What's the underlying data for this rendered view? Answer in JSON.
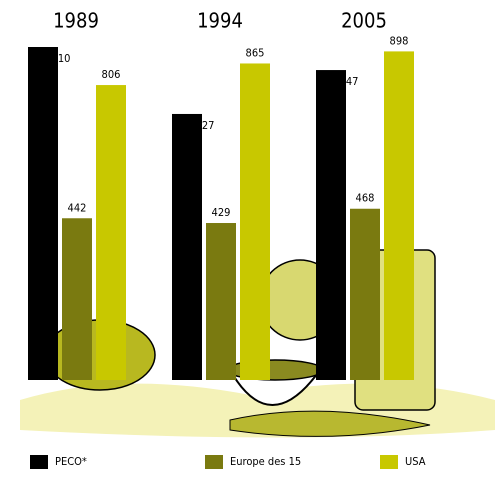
{
  "chart_data": {
    "type": "bar",
    "categories": [
      "1989",
      "1994",
      "2005"
    ],
    "series": [
      {
        "name": "PECO*",
        "color": "#000000",
        "values": [
          910,
          727,
          847
        ]
      },
      {
        "name": "Europe des 15",
        "color": "#7a7a10",
        "values": [
          442,
          429,
          468
        ]
      },
      {
        "name": "USA",
        "color": "#c8c800",
        "values": [
          806,
          865,
          898
        ]
      }
    ]
  }
}
